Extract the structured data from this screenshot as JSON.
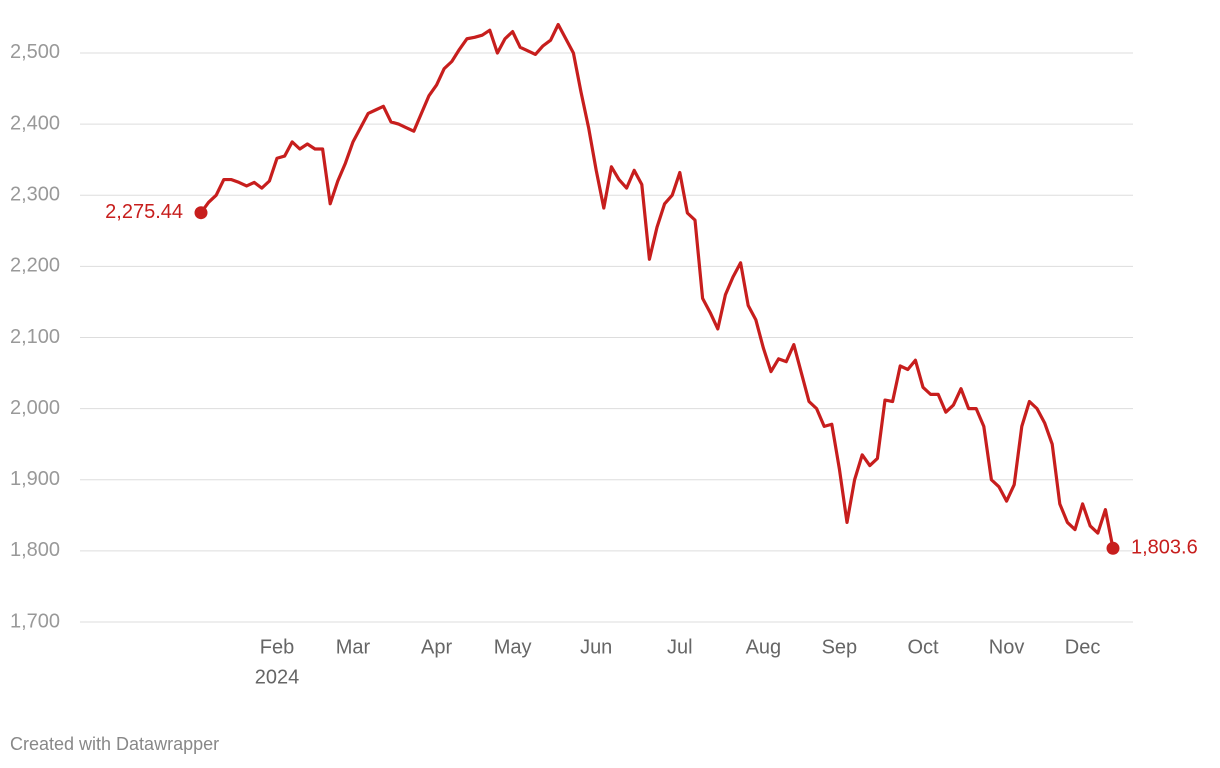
{
  "chart_data": {
    "type": "line",
    "categories": [
      null,
      null,
      null,
      null,
      null,
      null,
      null,
      null,
      null,
      null,
      "Feb",
      null,
      null,
      null,
      null,
      null,
      null,
      null,
      null,
      null,
      "Mar",
      null,
      null,
      null,
      null,
      null,
      null,
      null,
      null,
      null,
      null,
      "Apr",
      null,
      null,
      null,
      null,
      null,
      null,
      null,
      null,
      null,
      "May",
      null,
      null,
      null,
      null,
      null,
      null,
      null,
      null,
      null,
      null,
      "Jun",
      null,
      null,
      null,
      null,
      null,
      null,
      null,
      null,
      null,
      null,
      "Jul",
      null,
      null,
      null,
      null,
      null,
      null,
      null,
      null,
      null,
      null,
      "Aug",
      null,
      null,
      null,
      null,
      null,
      null,
      null,
      null,
      null,
      "Sep",
      null,
      null,
      null,
      null,
      null,
      null,
      null,
      null,
      null,
      null,
      "Oct",
      null,
      null,
      null,
      null,
      null,
      null,
      null,
      null,
      null,
      null,
      "Nov",
      null,
      null,
      null,
      null,
      null,
      null,
      null,
      null,
      null,
      "Dec",
      null,
      null,
      null,
      null
    ],
    "x_year_label": "2024",
    "values": [
      2275.44,
      2290,
      2300,
      2322,
      2322,
      2318,
      2313,
      2318,
      2310,
      2320,
      2352,
      2355,
      2375,
      2365,
      2372,
      2365,
      2365,
      2288,
      2320,
      2345,
      2375,
      2395,
      2415,
      2420,
      2425,
      2403,
      2400,
      2395,
      2390,
      2415,
      2440,
      2455,
      2478,
      2488,
      2505,
      2520,
      2522,
      2525,
      2532,
      2500,
      2520,
      2530,
      2508,
      2503,
      2498,
      2510,
      2518,
      2540,
      2520,
      2500,
      2445,
      2395,
      2335,
      2282,
      2340,
      2322,
      2310,
      2335,
      2315,
      2210,
      2255,
      2288,
      2300,
      2332,
      2275,
      2265,
      2155,
      2135,
      2112,
      2160,
      2185,
      2205,
      2145,
      2125,
      2085,
      2052,
      2070,
      2066,
      2090,
      2050,
      2010,
      2000,
      1975,
      1978,
      1915,
      1840,
      1900,
      1935,
      1920,
      1930,
      2012,
      2010,
      2060,
      2055,
      2068,
      2030,
      2020,
      2020,
      1995,
      2005,
      2028,
      2000,
      2000,
      1975,
      1900,
      1890,
      1870,
      1893,
      1975,
      2010,
      2000,
      1980,
      1950,
      1866,
      1840,
      1830,
      1866,
      1835,
      1825,
      1858,
      1803.6
    ],
    "value_labels": [
      "2,275.44",
      null,
      null,
      null,
      null,
      null,
      null,
      null,
      null,
      null,
      null,
      null,
      null,
      null,
      null,
      null,
      null,
      null,
      null,
      null,
      null,
      null,
      null,
      null,
      null,
      null,
      null,
      null,
      null,
      null,
      null,
      null,
      null,
      null,
      null,
      null,
      null,
      null,
      null,
      null,
      null,
      null,
      null,
      null,
      null,
      null,
      null,
      null,
      null,
      null,
      null,
      null,
      null,
      null,
      null,
      null,
      null,
      null,
      null,
      null,
      null,
      null,
      null,
      null,
      null,
      null,
      null,
      null,
      null,
      null,
      null,
      null,
      null,
      null,
      null,
      null,
      null,
      null,
      null,
      null,
      null,
      null,
      null,
      null,
      null,
      null,
      null,
      null,
      null,
      null,
      null,
      null,
      null,
      null,
      null,
      null,
      null,
      null,
      null,
      null,
      null,
      null,
      null,
      null,
      null,
      null,
      null,
      null,
      null,
      null,
      null,
      null,
      null,
      null,
      null,
      null,
      null,
      null,
      null,
      null,
      "1,803.6"
    ],
    "color": "#c71e1d",
    "ylim": [
      1700,
      2550
    ],
    "yticks": [
      {
        "value": 1700,
        "label": "1,700"
      },
      {
        "value": 1800,
        "label": "1,800"
      },
      {
        "value": 1900,
        "label": "1,900"
      },
      {
        "value": 2000,
        "label": "2,000"
      },
      {
        "value": 2100,
        "label": "2,100"
      },
      {
        "value": 2200,
        "label": "2,200"
      },
      {
        "value": 2300,
        "label": "2,300"
      },
      {
        "value": 2400,
        "label": "2,400"
      },
      {
        "value": 2500,
        "label": "2,500"
      }
    ],
    "grid": true,
    "footer": "Created with Datawrapper"
  }
}
